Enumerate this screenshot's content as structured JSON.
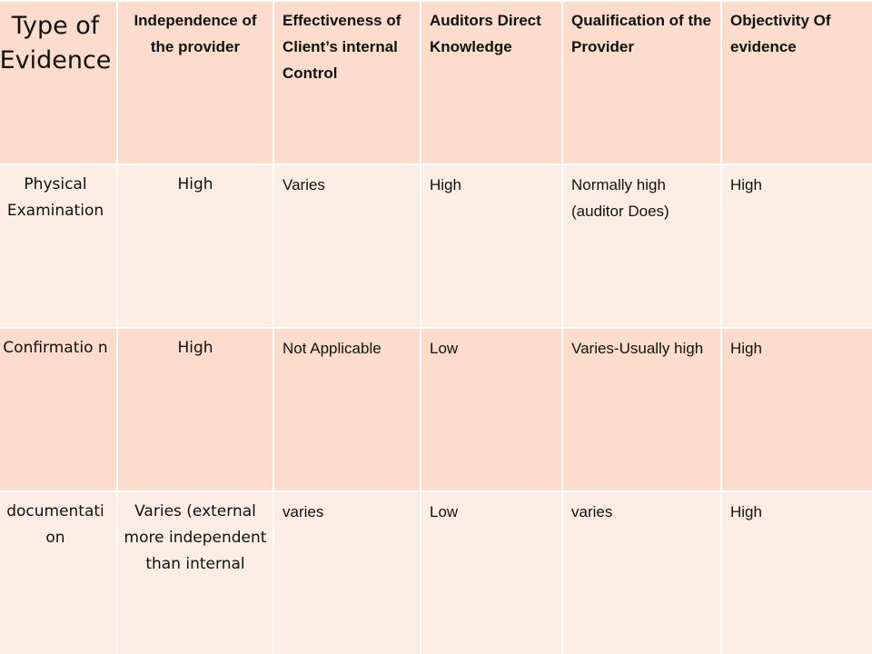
{
  "table": {
    "headers": [
      "Type of Evidence",
      "Independence of the provider",
      "Effectiveness of Client’s internal Control",
      "Auditors Direct Knowledge",
      "Qualification of the Provider",
      "Objectivity Of evidence"
    ],
    "rows": [
      [
        "Physical Examination",
        "High",
        "Varies",
        "High",
        "Normally high (auditor Does)",
        "High"
      ],
      [
        "Confirmatio n",
        "High",
        "Not Applicable",
        "Low",
        "Varies-Usually high",
        "High"
      ],
      [
        "documentati on",
        "Varies (external more independent than internal",
        "varies",
        "Low",
        "varies",
        "High"
      ]
    ]
  },
  "colors": {
    "header_fill": "#fcdccc",
    "light_row_fill": "#fdeee5",
    "dark_row_fill": "#fcdccc",
    "text": "#111111"
  }
}
